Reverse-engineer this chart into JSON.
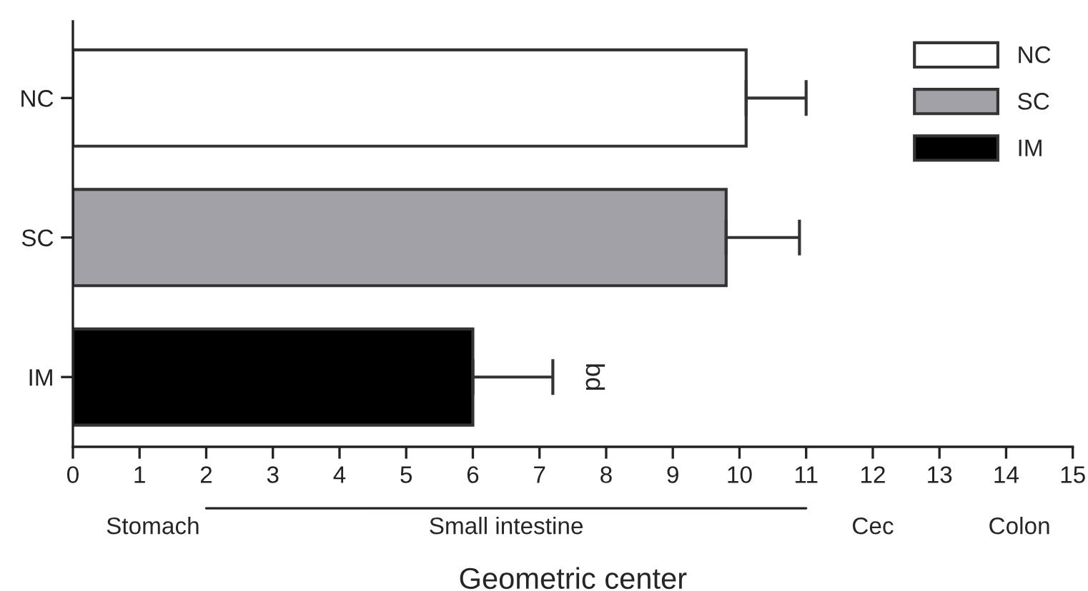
{
  "chart_data": {
    "type": "bar",
    "orientation": "horizontal",
    "xlabel": "Geometric center",
    "categories": [
      "NC",
      "SC",
      "IM"
    ],
    "series": [
      {
        "name": "NC",
        "color": "#ffffff",
        "values": [
          10.1,
          null,
          null
        ],
        "errors": [
          [
            10.1,
            11.0
          ],
          null,
          null
        ]
      },
      {
        "name": "SC",
        "color": "#a2a1a8",
        "values": [
          null,
          9.8,
          null
        ],
        "errors": [
          null,
          [
            9.8,
            10.9
          ],
          null
        ]
      },
      {
        "name": "IM",
        "color": "#000000",
        "values": [
          null,
          null,
          6.0
        ],
        "errors": [
          null,
          null,
          [
            6.0,
            7.2
          ]
        ]
      }
    ],
    "xlim": [
      0,
      15
    ],
    "xticks": [
      0,
      1,
      2,
      3,
      4,
      5,
      6,
      7,
      8,
      9,
      10,
      11,
      12,
      13,
      14,
      15
    ],
    "grid": false,
    "legend": "top right",
    "annotations": [
      "bd",
      "Stomach",
      "Small intestine",
      "Cec",
      "Colon"
    ]
  }
}
